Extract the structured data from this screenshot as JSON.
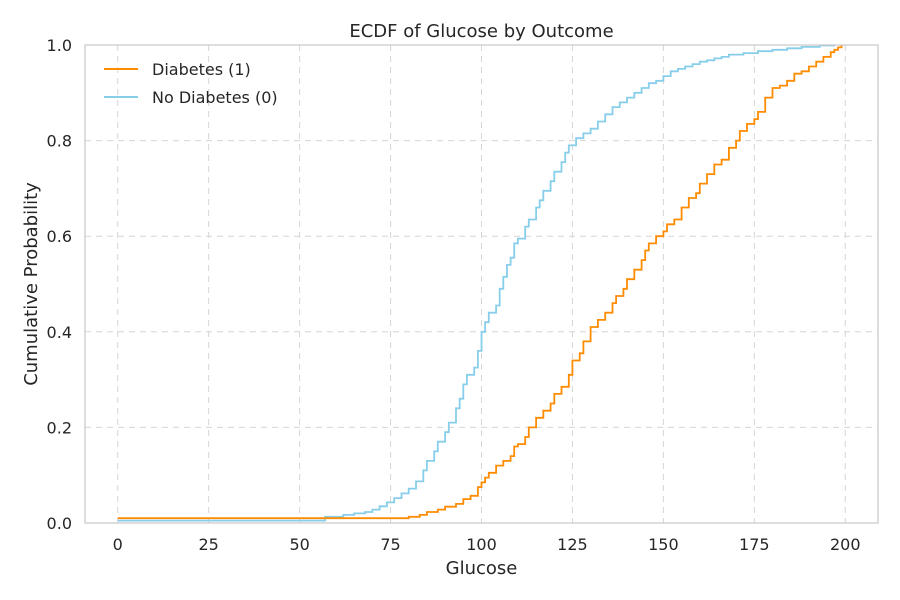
{
  "chart_data": {
    "type": "line",
    "title": "ECDF of Glucose by Outcome",
    "xlabel": "Glucose",
    "ylabel": "Cumulative Probability",
    "xlim": [
      -9,
      209
    ],
    "ylim": [
      0,
      1
    ],
    "x_ticks": [
      0,
      25,
      50,
      75,
      100,
      125,
      150,
      175,
      200
    ],
    "x_tick_labels": [
      "0",
      "25",
      "50",
      "75",
      "100",
      "125",
      "150",
      "175",
      "200"
    ],
    "y_ticks": [
      0,
      0.2,
      0.4,
      0.6,
      0.8,
      1.0
    ],
    "y_tick_labels": [
      "0.0",
      "0.2",
      "0.4",
      "0.6",
      "0.8",
      "1.0"
    ],
    "grid": true,
    "legend_position": "top-left",
    "series": [
      {
        "name": "Diabetes (1)",
        "color": "#ff8c00",
        "points": [
          [
            0,
            0.01
          ],
          [
            57,
            0.01
          ],
          [
            78,
            0.01
          ],
          [
            80,
            0.013
          ],
          [
            83,
            0.017
          ],
          [
            85,
            0.023
          ],
          [
            88,
            0.028
          ],
          [
            90,
            0.034
          ],
          [
            93,
            0.04
          ],
          [
            95,
            0.05
          ],
          [
            97,
            0.057
          ],
          [
            99,
            0.075
          ],
          [
            100,
            0.085
          ],
          [
            101,
            0.095
          ],
          [
            102,
            0.105
          ],
          [
            104,
            0.12
          ],
          [
            106,
            0.13
          ],
          [
            108,
            0.14
          ],
          [
            109,
            0.16
          ],
          [
            110,
            0.165
          ],
          [
            112,
            0.18
          ],
          [
            113,
            0.2
          ],
          [
            115,
            0.22
          ],
          [
            117,
            0.235
          ],
          [
            119,
            0.25
          ],
          [
            120,
            0.27
          ],
          [
            122,
            0.285
          ],
          [
            124,
            0.31
          ],
          [
            125,
            0.34
          ],
          [
            127,
            0.355
          ],
          [
            128,
            0.38
          ],
          [
            130,
            0.41
          ],
          [
            132,
            0.425
          ],
          [
            134,
            0.44
          ],
          [
            136,
            0.46
          ],
          [
            137,
            0.475
          ],
          [
            139,
            0.49
          ],
          [
            140,
            0.51
          ],
          [
            142,
            0.53
          ],
          [
            144,
            0.55
          ],
          [
            145,
            0.57
          ],
          [
            146,
            0.585
          ],
          [
            148,
            0.6
          ],
          [
            150,
            0.61
          ],
          [
            151,
            0.625
          ],
          [
            153,
            0.635
          ],
          [
            155,
            0.66
          ],
          [
            157,
            0.68
          ],
          [
            159,
            0.69
          ],
          [
            160,
            0.71
          ],
          [
            162,
            0.73
          ],
          [
            164,
            0.75
          ],
          [
            166,
            0.76
          ],
          [
            168,
            0.785
          ],
          [
            170,
            0.8
          ],
          [
            171,
            0.82
          ],
          [
            173,
            0.835
          ],
          [
            175,
            0.845
          ],
          [
            176,
            0.86
          ],
          [
            178,
            0.89
          ],
          [
            180,
            0.91
          ],
          [
            182,
            0.915
          ],
          [
            184,
            0.925
          ],
          [
            186,
            0.94
          ],
          [
            188,
            0.945
          ],
          [
            190,
            0.955
          ],
          [
            192,
            0.965
          ],
          [
            194,
            0.975
          ],
          [
            196,
            0.985
          ],
          [
            197,
            0.99
          ],
          [
            198,
            0.995
          ],
          [
            199,
            1.0
          ]
        ]
      },
      {
        "name": "No Diabetes (0)",
        "color": "#87ceeb",
        "points": [
          [
            0,
            0.005
          ],
          [
            44,
            0.005
          ],
          [
            57,
            0.013
          ],
          [
            62,
            0.017
          ],
          [
            65,
            0.02
          ],
          [
            68,
            0.023
          ],
          [
            70,
            0.028
          ],
          [
            72,
            0.035
          ],
          [
            74,
            0.043
          ],
          [
            76,
            0.052
          ],
          [
            78,
            0.062
          ],
          [
            80,
            0.072
          ],
          [
            82,
            0.087
          ],
          [
            84,
            0.11
          ],
          [
            85,
            0.13
          ],
          [
            87,
            0.15
          ],
          [
            88,
            0.17
          ],
          [
            90,
            0.19
          ],
          [
            91,
            0.21
          ],
          [
            93,
            0.24
          ],
          [
            94,
            0.26
          ],
          [
            95,
            0.29
          ],
          [
            96,
            0.31
          ],
          [
            98,
            0.325
          ],
          [
            99,
            0.36
          ],
          [
            100,
            0.4
          ],
          [
            101,
            0.42
          ],
          [
            102,
            0.44
          ],
          [
            104,
            0.455
          ],
          [
            105,
            0.49
          ],
          [
            106,
            0.515
          ],
          [
            107,
            0.54
          ],
          [
            108,
            0.555
          ],
          [
            109,
            0.585
          ],
          [
            110,
            0.595
          ],
          [
            112,
            0.62
          ],
          [
            113,
            0.635
          ],
          [
            115,
            0.66
          ],
          [
            116,
            0.675
          ],
          [
            117,
            0.695
          ],
          [
            119,
            0.715
          ],
          [
            120,
            0.735
          ],
          [
            122,
            0.755
          ],
          [
            123,
            0.775
          ],
          [
            124,
            0.79
          ],
          [
            126,
            0.805
          ],
          [
            128,
            0.815
          ],
          [
            130,
            0.825
          ],
          [
            132,
            0.84
          ],
          [
            134,
            0.855
          ],
          [
            136,
            0.87
          ],
          [
            138,
            0.88
          ],
          [
            140,
            0.89
          ],
          [
            142,
            0.9
          ],
          [
            144,
            0.91
          ],
          [
            146,
            0.92
          ],
          [
            148,
            0.925
          ],
          [
            150,
            0.935
          ],
          [
            152,
            0.945
          ],
          [
            154,
            0.95
          ],
          [
            156,
            0.955
          ],
          [
            158,
            0.96
          ],
          [
            160,
            0.965
          ],
          [
            162,
            0.968
          ],
          [
            164,
            0.972
          ],
          [
            166,
            0.975
          ],
          [
            168,
            0.98
          ],
          [
            172,
            0.983
          ],
          [
            176,
            0.987
          ],
          [
            180,
            0.99
          ],
          [
            184,
            0.993
          ],
          [
            188,
            0.996
          ],
          [
            193,
            0.999
          ],
          [
            197,
            1.0
          ]
        ]
      }
    ]
  }
}
